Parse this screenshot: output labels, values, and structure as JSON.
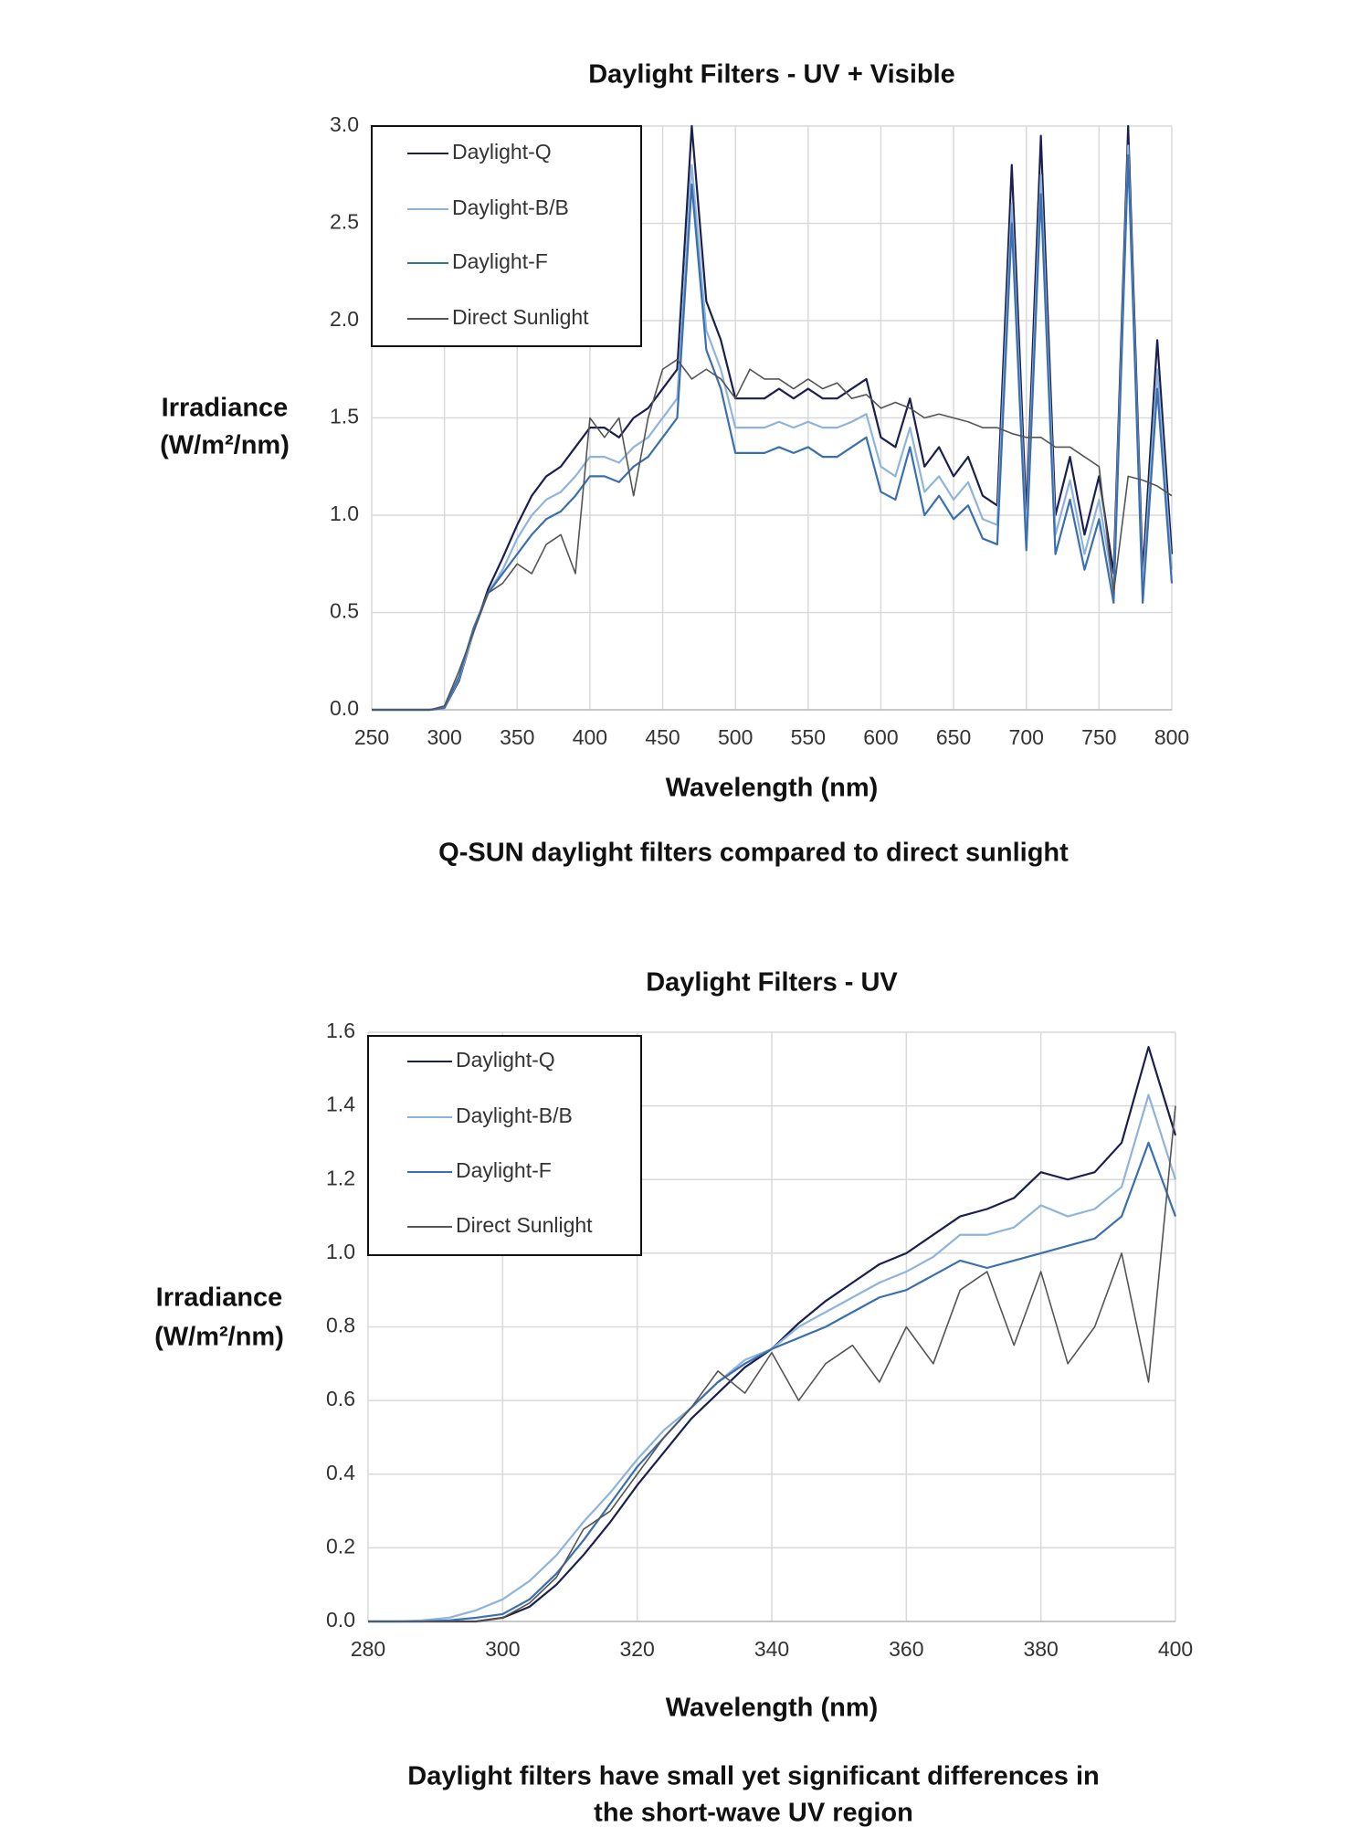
{
  "chart_data": [
    {
      "type": "line",
      "title": "Daylight Filters - UV + Visible",
      "xlabel": "Wavelength (nm)",
      "ylabel": [
        "Irradiance",
        "(W/m²/nm)"
      ],
      "caption": [
        "Q-SUN daylight filters compared to direct sunlight"
      ],
      "xlim": [
        250,
        800
      ],
      "xticks": [
        250,
        300,
        350,
        400,
        450,
        500,
        550,
        600,
        650,
        700,
        750,
        800
      ],
      "ylim": [
        0,
        3
      ],
      "yticks": [
        {
          "value": 0,
          "label": "0.0"
        },
        0.5,
        {
          "value": 1,
          "label": "1.0"
        },
        1.5,
        {
          "value": 2,
          "label": "2.0"
        },
        2.5,
        {
          "value": 3,
          "label": "3.0"
        }
      ],
      "grid": true,
      "legend": "upper left",
      "x": [
        250,
        260,
        270,
        280,
        290,
        300,
        310,
        320,
        330,
        340,
        350,
        360,
        370,
        380,
        390,
        400,
        410,
        420,
        430,
        440,
        450,
        460,
        470,
        480,
        490,
        500,
        510,
        520,
        530,
        540,
        550,
        560,
        570,
        580,
        590,
        600,
        610,
        620,
        630,
        640,
        650,
        660,
        670,
        680,
        690,
        700,
        710,
        720,
        730,
        740,
        750,
        760,
        770,
        780,
        790,
        800
      ],
      "series": [
        {
          "name": "Daylight-Q",
          "color": "#1b1f4e",
          "values": [
            0,
            0,
            0,
            0,
            0,
            0.01,
            0.15,
            0.4,
            0.62,
            0.78,
            0.95,
            1.1,
            1.2,
            1.25,
            1.35,
            1.45,
            1.45,
            1.4,
            1.5,
            1.55,
            1.65,
            1.75,
            3.0,
            2.1,
            1.9,
            1.6,
            1.6,
            1.6,
            1.65,
            1.6,
            1.65,
            1.6,
            1.6,
            1.65,
            1.7,
            1.4,
            1.35,
            1.6,
            1.25,
            1.35,
            1.2,
            1.3,
            1.1,
            1.05,
            2.8,
            1.0,
            2.95,
            1.0,
            1.3,
            0.9,
            1.2,
            0.7,
            3.0,
            0.7,
            1.9,
            0.8
          ]
        },
        {
          "name": "Daylight-B/B",
          "color": "#8fb4dc",
          "values": [
            0,
            0,
            0,
            0,
            0,
            0.01,
            0.16,
            0.4,
            0.6,
            0.72,
            0.88,
            1.0,
            1.08,
            1.12,
            1.2,
            1.3,
            1.3,
            1.27,
            1.35,
            1.4,
            1.5,
            1.6,
            2.8,
            1.95,
            1.75,
            1.45,
            1.45,
            1.45,
            1.48,
            1.45,
            1.48,
            1.45,
            1.45,
            1.48,
            1.52,
            1.25,
            1.2,
            1.45,
            1.12,
            1.2,
            1.08,
            1.17,
            0.98,
            0.95,
            2.6,
            0.9,
            2.75,
            0.9,
            1.18,
            0.8,
            1.08,
            0.62,
            2.9,
            0.62,
            1.75,
            0.72
          ]
        },
        {
          "name": "Daylight-F",
          "color": "#3a6fb0",
          "values": [
            0,
            0,
            0,
            0,
            0,
            0.01,
            0.17,
            0.42,
            0.6,
            0.7,
            0.8,
            0.9,
            0.98,
            1.02,
            1.1,
            1.2,
            1.2,
            1.17,
            1.25,
            1.3,
            1.4,
            1.5,
            2.7,
            1.85,
            1.65,
            1.32,
            1.32,
            1.32,
            1.35,
            1.32,
            1.35,
            1.3,
            1.3,
            1.35,
            1.4,
            1.12,
            1.08,
            1.35,
            1.0,
            1.1,
            0.98,
            1.05,
            0.88,
            0.85,
            2.5,
            0.82,
            2.65,
            0.8,
            1.08,
            0.72,
            0.98,
            0.55,
            2.85,
            0.55,
            1.65,
            0.65
          ]
        },
        {
          "name": "Direct Sunlight",
          "color": "#555555",
          "values": [
            0,
            0,
            0,
            0,
            0,
            0.02,
            0.2,
            0.4,
            0.6,
            0.65,
            0.75,
            0.7,
            0.85,
            0.9,
            0.7,
            1.5,
            1.4,
            1.5,
            1.1,
            1.5,
            1.75,
            1.8,
            1.7,
            1.75,
            1.7,
            1.6,
            1.75,
            1.7,
            1.7,
            1.65,
            1.7,
            1.65,
            1.68,
            1.6,
            1.62,
            1.55,
            1.58,
            1.55,
            1.5,
            1.52,
            1.5,
            1.48,
            1.45,
            1.45,
            1.42,
            1.4,
            1.4,
            1.35,
            1.35,
            1.3,
            1.25,
            0.6,
            1.2,
            1.18,
            1.15,
            1.1
          ]
        }
      ]
    },
    {
      "type": "line",
      "title": "Daylight Filters - UV",
      "xlabel": "Wavelength (nm)",
      "ylabel": [
        "Irradiance",
        "(W/m²/nm)"
      ],
      "caption": [
        "Daylight filters have small yet significant differences in",
        "the short-wave UV region"
      ],
      "xlim": [
        280,
        400
      ],
      "xticks": [
        280,
        300,
        320,
        340,
        360,
        380,
        400
      ],
      "ylim": [
        0,
        1.6
      ],
      "yticks": [
        {
          "value": 0,
          "label": "0.0"
        },
        0.2,
        0.4,
        0.6,
        0.8,
        {
          "value": 1,
          "label": "1.0"
        },
        1.2,
        1.4,
        1.6
      ],
      "grid": true,
      "legend": "upper left",
      "x": [
        280,
        284,
        288,
        292,
        296,
        300,
        304,
        308,
        312,
        316,
        320,
        324,
        328,
        332,
        336,
        340,
        344,
        348,
        352,
        356,
        360,
        364,
        368,
        372,
        376,
        380,
        384,
        388,
        392,
        396,
        400
      ],
      "series": [
        {
          "name": "Daylight-Q",
          "color": "#1b1f4e",
          "values": [
            0,
            0,
            0,
            0,
            0,
            0.01,
            0.04,
            0.1,
            0.18,
            0.27,
            0.37,
            0.46,
            0.55,
            0.62,
            0.69,
            0.74,
            0.81,
            0.87,
            0.92,
            0.97,
            1.0,
            1.05,
            1.1,
            1.12,
            1.15,
            1.22,
            1.2,
            1.22,
            1.3,
            1.56,
            1.32
          ]
        },
        {
          "name": "Daylight-B/B",
          "color": "#8fb4dc",
          "values": [
            0,
            0,
            0.003,
            0.01,
            0.03,
            0.06,
            0.11,
            0.18,
            0.27,
            0.35,
            0.44,
            0.52,
            0.58,
            0.65,
            0.71,
            0.74,
            0.8,
            0.84,
            0.88,
            0.92,
            0.95,
            0.99,
            1.05,
            1.05,
            1.07,
            1.13,
            1.1,
            1.12,
            1.18,
            1.43,
            1.2
          ]
        },
        {
          "name": "Daylight-F",
          "color": "#3a6fb0",
          "values": [
            0,
            0,
            0,
            0.003,
            0.01,
            0.02,
            0.06,
            0.13,
            0.22,
            0.32,
            0.42,
            0.5,
            0.58,
            0.65,
            0.7,
            0.74,
            0.77,
            0.8,
            0.84,
            0.88,
            0.9,
            0.94,
            0.98,
            0.96,
            0.98,
            1.0,
            1.02,
            1.04,
            1.1,
            1.3,
            1.1
          ]
        },
        {
          "name": "Direct Sunlight",
          "color": "#555555",
          "values": [
            0,
            0,
            0,
            0,
            0,
            0.01,
            0.05,
            0.12,
            0.25,
            0.3,
            0.4,
            0.5,
            0.58,
            0.68,
            0.62,
            0.73,
            0.6,
            0.7,
            0.75,
            0.65,
            0.8,
            0.7,
            0.9,
            0.95,
            0.75,
            0.95,
            0.7,
            0.8,
            1.0,
            0.65,
            1.4
          ]
        }
      ]
    }
  ]
}
